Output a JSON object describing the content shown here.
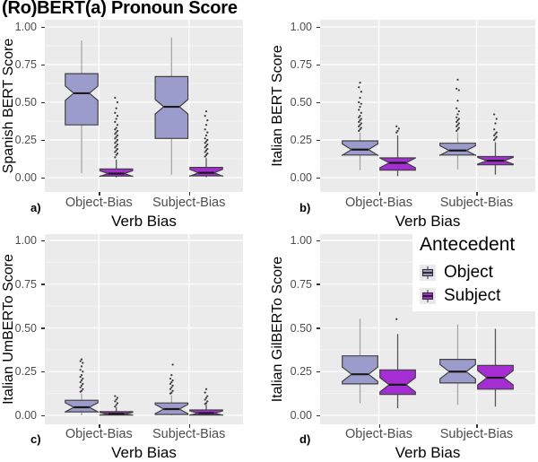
{
  "title": "(Ro)BERT(a) Pronoun Score",
  "axis": {
    "yticks": [
      "0.00",
      "0.25",
      "0.50",
      "0.75",
      "1.00"
    ],
    "categories": [
      "Object-Bias",
      "Subject-Bias"
    ],
    "xlabel": "Verb Bias"
  },
  "legend": {
    "title": "Antecedent",
    "position": "top-right-of-panel-d",
    "entries": [
      {
        "label": "Object",
        "color": "#9B9CCB"
      },
      {
        "label": "Subject",
        "color": "#A42ED4"
      }
    ]
  },
  "colors": {
    "panel_bg": "#EBEBEB",
    "grid_major": "#FFFFFF",
    "grid_minor": "#F5F5F5",
    "object_fill": "#9B9CCB",
    "subject_fill": "#A42ED4",
    "box_border": "#404040",
    "median": "#1A1A1A",
    "whisker_object": "#A6A6A6",
    "whisker_subject": "#575757",
    "outlier": "#3A3A3A",
    "tick_text": "#4D4D4D"
  },
  "chart_data": [
    {
      "type": "box",
      "letter": "a)",
      "ylabel": "Spanish BERT Score",
      "xlabel": "Verb Bias",
      "ylim": [
        0,
        1
      ],
      "grid": true,
      "notched": true,
      "categories": [
        "Object-Bias",
        "Subject-Bias"
      ],
      "series": [
        {
          "name": "Object",
          "boxes": [
            {
              "group": "Object-Bias",
              "whisker_low": 0.03,
              "q1": 0.35,
              "median": 0.56,
              "q3": 0.69,
              "whisker_high": 0.91,
              "outliers": []
            },
            {
              "group": "Subject-Bias",
              "whisker_low": 0.02,
              "q1": 0.26,
              "median": 0.47,
              "q3": 0.67,
              "whisker_high": 0.93,
              "outliers": []
            }
          ]
        },
        {
          "name": "Subject",
          "boxes": [
            {
              "group": "Object-Bias",
              "whisker_low": 0.002,
              "q1": 0.01,
              "median": 0.027,
              "q3": 0.057,
              "whisker_high": 0.12,
              "outliers": [
                0.135,
                0.15,
                0.16,
                0.17,
                0.18,
                0.19,
                0.2,
                0.21,
                0.22,
                0.23,
                0.24,
                0.25,
                0.26,
                0.27,
                0.28,
                0.29,
                0.3,
                0.31,
                0.32,
                0.33,
                0.35,
                0.37,
                0.39,
                0.41,
                0.43,
                0.46,
                0.5,
                0.53
              ]
            },
            {
              "group": "Subject-Bias",
              "whisker_low": 0.002,
              "q1": 0.012,
              "median": 0.032,
              "q3": 0.068,
              "whisker_high": 0.13,
              "outliers": [
                0.14,
                0.15,
                0.16,
                0.17,
                0.18,
                0.19,
                0.2,
                0.21,
                0.22,
                0.23,
                0.24,
                0.25,
                0.26,
                0.28,
                0.3,
                0.32,
                0.35,
                0.38,
                0.41,
                0.44
              ]
            }
          ]
        }
      ]
    },
    {
      "type": "box",
      "letter": "b)",
      "ylabel": "Italian BERT Score",
      "xlabel": "Verb Bias",
      "ylim": [
        0,
        1
      ],
      "grid": true,
      "notched": true,
      "categories": [
        "Object-Bias",
        "Subject-Bias"
      ],
      "series": [
        {
          "name": "Object",
          "boxes": [
            {
              "group": "Object-Bias",
              "whisker_low": 0.05,
              "q1": 0.15,
              "median": 0.186,
              "q3": 0.244,
              "whisker_high": 0.3,
              "outliers": [
                0.31,
                0.32,
                0.33,
                0.34,
                0.35,
                0.36,
                0.37,
                0.38,
                0.39,
                0.4,
                0.41,
                0.43,
                0.45,
                0.47,
                0.49,
                0.5,
                0.53,
                0.57,
                0.6,
                0.63
              ]
            },
            {
              "group": "Subject-Bias",
              "whisker_low": 0.055,
              "q1": 0.15,
              "median": 0.18,
              "q3": 0.228,
              "whisker_high": 0.3,
              "outliers": [
                0.31,
                0.32,
                0.33,
                0.34,
                0.35,
                0.36,
                0.37,
                0.38,
                0.39,
                0.4,
                0.42,
                0.44,
                0.46,
                0.51,
                0.58,
                0.59,
                0.65
              ]
            }
          ]
        },
        {
          "name": "Subject",
          "boxes": [
            {
              "group": "Object-Bias",
              "whisker_low": 0.01,
              "q1": 0.05,
              "median": 0.098,
              "q3": 0.131,
              "whisker_high": 0.28,
              "outliers": [
                0.3,
                0.31,
                0.325,
                0.34
              ]
            },
            {
              "group": "Subject-Bias",
              "whisker_low": 0.02,
              "q1": 0.085,
              "median": 0.112,
              "q3": 0.14,
              "whisker_high": 0.235,
              "outliers": [
                0.25,
                0.26,
                0.27,
                0.28,
                0.29,
                0.3,
                0.32,
                0.36,
                0.39,
                0.42
              ]
            }
          ]
        }
      ]
    },
    {
      "type": "box",
      "letter": "c)",
      "ylabel": "Italian UmBERTo Score",
      "xlabel": "Verb Bias",
      "ylim": [
        0,
        1
      ],
      "grid": true,
      "notched": true,
      "categories": [
        "Object-Bias",
        "Subject-Bias"
      ],
      "series": [
        {
          "name": "Object",
          "boxes": [
            {
              "group": "Object-Bias",
              "whisker_low": 0.0,
              "q1": 0.02,
              "median": 0.046,
              "q3": 0.086,
              "whisker_high": 0.125,
              "outliers": [
                0.135,
                0.14,
                0.15,
                0.16,
                0.17,
                0.18,
                0.19,
                0.2,
                0.21,
                0.22,
                0.23,
                0.25,
                0.26,
                0.28,
                0.3,
                0.31,
                0.32
              ]
            },
            {
              "group": "Subject-Bias",
              "whisker_low": 0.0,
              "q1": 0.005,
              "median": 0.036,
              "q3": 0.071,
              "whisker_high": 0.115,
              "outliers": [
                0.125,
                0.13,
                0.14,
                0.15,
                0.16,
                0.17,
                0.18,
                0.19,
                0.2,
                0.21,
                0.23,
                0.29
              ]
            }
          ]
        },
        {
          "name": "Subject",
          "boxes": [
            {
              "group": "Object-Bias",
              "whisker_low": 0.0,
              "q1": 0.002,
              "median": 0.009,
              "q3": 0.021,
              "whisker_high": 0.045,
              "outliers": [
                0.05,
                0.06,
                0.07,
                0.08,
                0.09,
                0.1,
                0.11
              ]
            },
            {
              "group": "Subject-Bias",
              "whisker_low": 0.0,
              "q1": 0.002,
              "median": 0.013,
              "q3": 0.031,
              "whisker_high": 0.06,
              "outliers": [
                0.065,
                0.07,
                0.08,
                0.09,
                0.1,
                0.11,
                0.13,
                0.15
              ]
            }
          ]
        }
      ]
    },
    {
      "type": "box",
      "letter": "d)",
      "ylabel": "Italian GilBERTo Score",
      "xlabel": "Verb Bias",
      "ylim": [
        0,
        1
      ],
      "grid": true,
      "notched": true,
      "categories": [
        "Object-Bias",
        "Subject-Bias"
      ],
      "series": [
        {
          "name": "Object",
          "boxes": [
            {
              "group": "Object-Bias",
              "whisker_low": 0.07,
              "q1": 0.18,
              "median": 0.235,
              "q3": 0.34,
              "whisker_high": 0.552,
              "outliers": []
            },
            {
              "group": "Subject-Bias",
              "whisker_low": 0.06,
              "q1": 0.185,
              "median": 0.25,
              "q3": 0.32,
              "whisker_high": 0.52,
              "outliers": []
            }
          ]
        },
        {
          "name": "Subject",
          "boxes": [
            {
              "group": "Object-Bias",
              "whisker_low": 0.04,
              "q1": 0.12,
              "median": 0.175,
              "q3": 0.26,
              "whisker_high": 0.465,
              "outliers": [
                0.55
              ]
            },
            {
              "group": "Subject-Bias",
              "whisker_low": 0.05,
              "q1": 0.15,
              "median": 0.215,
              "q3": 0.285,
              "whisker_high": 0.495,
              "outliers": []
            }
          ]
        }
      ]
    }
  ]
}
